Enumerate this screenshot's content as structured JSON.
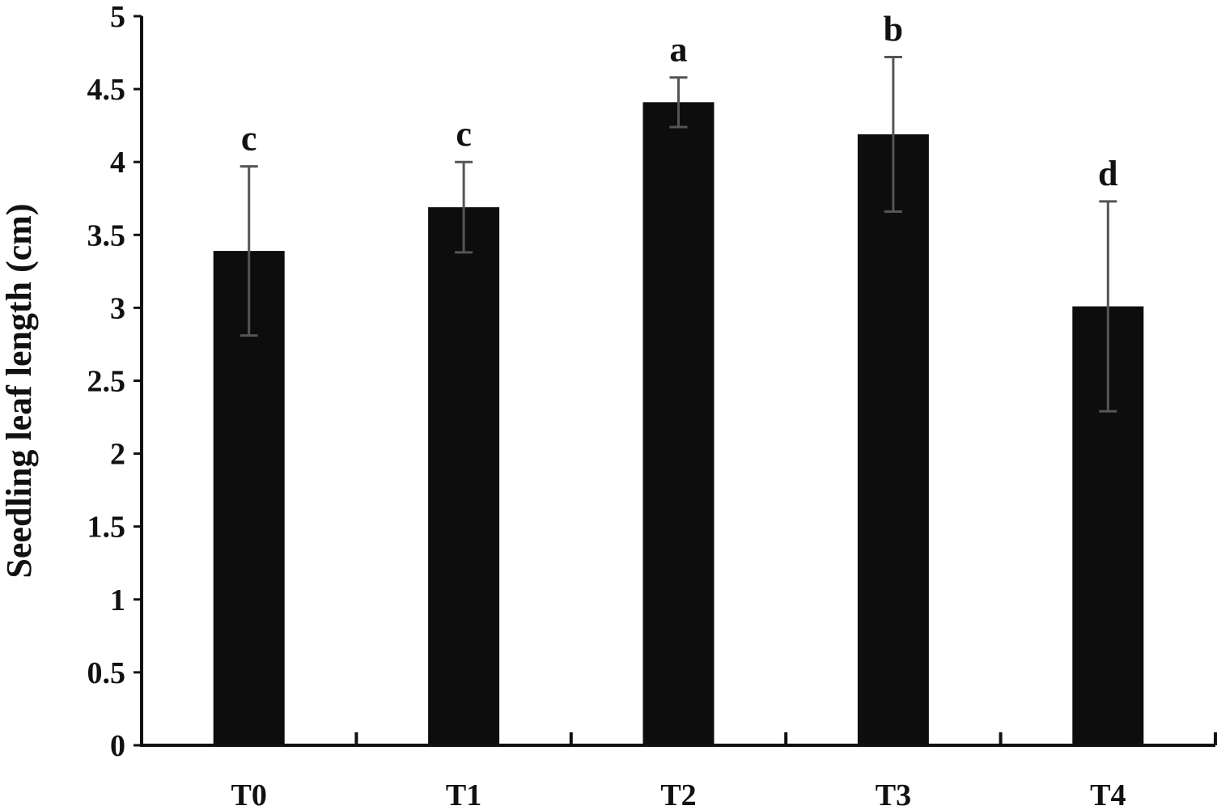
{
  "chart_data": {
    "type": "bar",
    "title": "",
    "xlabel": "",
    "ylabel": "Seedling leaf length (cm)",
    "ylim": [
      0,
      5
    ],
    "yticks": [
      0,
      0.5,
      1,
      1.5,
      2,
      2.5,
      3,
      3.5,
      4,
      4.5,
      5
    ],
    "ytick_labels": [
      "0",
      "0.5",
      "1",
      "1.5",
      "2",
      "2.5",
      "3",
      "3.5",
      "4",
      "4.5",
      "5"
    ],
    "categories": [
      "T0",
      "T1",
      "T2",
      "T3",
      "T4"
    ],
    "values": [
      3.39,
      3.69,
      4.41,
      4.19,
      3.01
    ],
    "error": [
      0.58,
      0.31,
      0.17,
      0.53,
      0.72
    ],
    "significance": [
      "c",
      "c",
      "a",
      "b",
      "d"
    ],
    "grid": false,
    "colors": {
      "bar": "#0d0d0d",
      "axis": "#111111",
      "error_bar": "#555555"
    }
  }
}
